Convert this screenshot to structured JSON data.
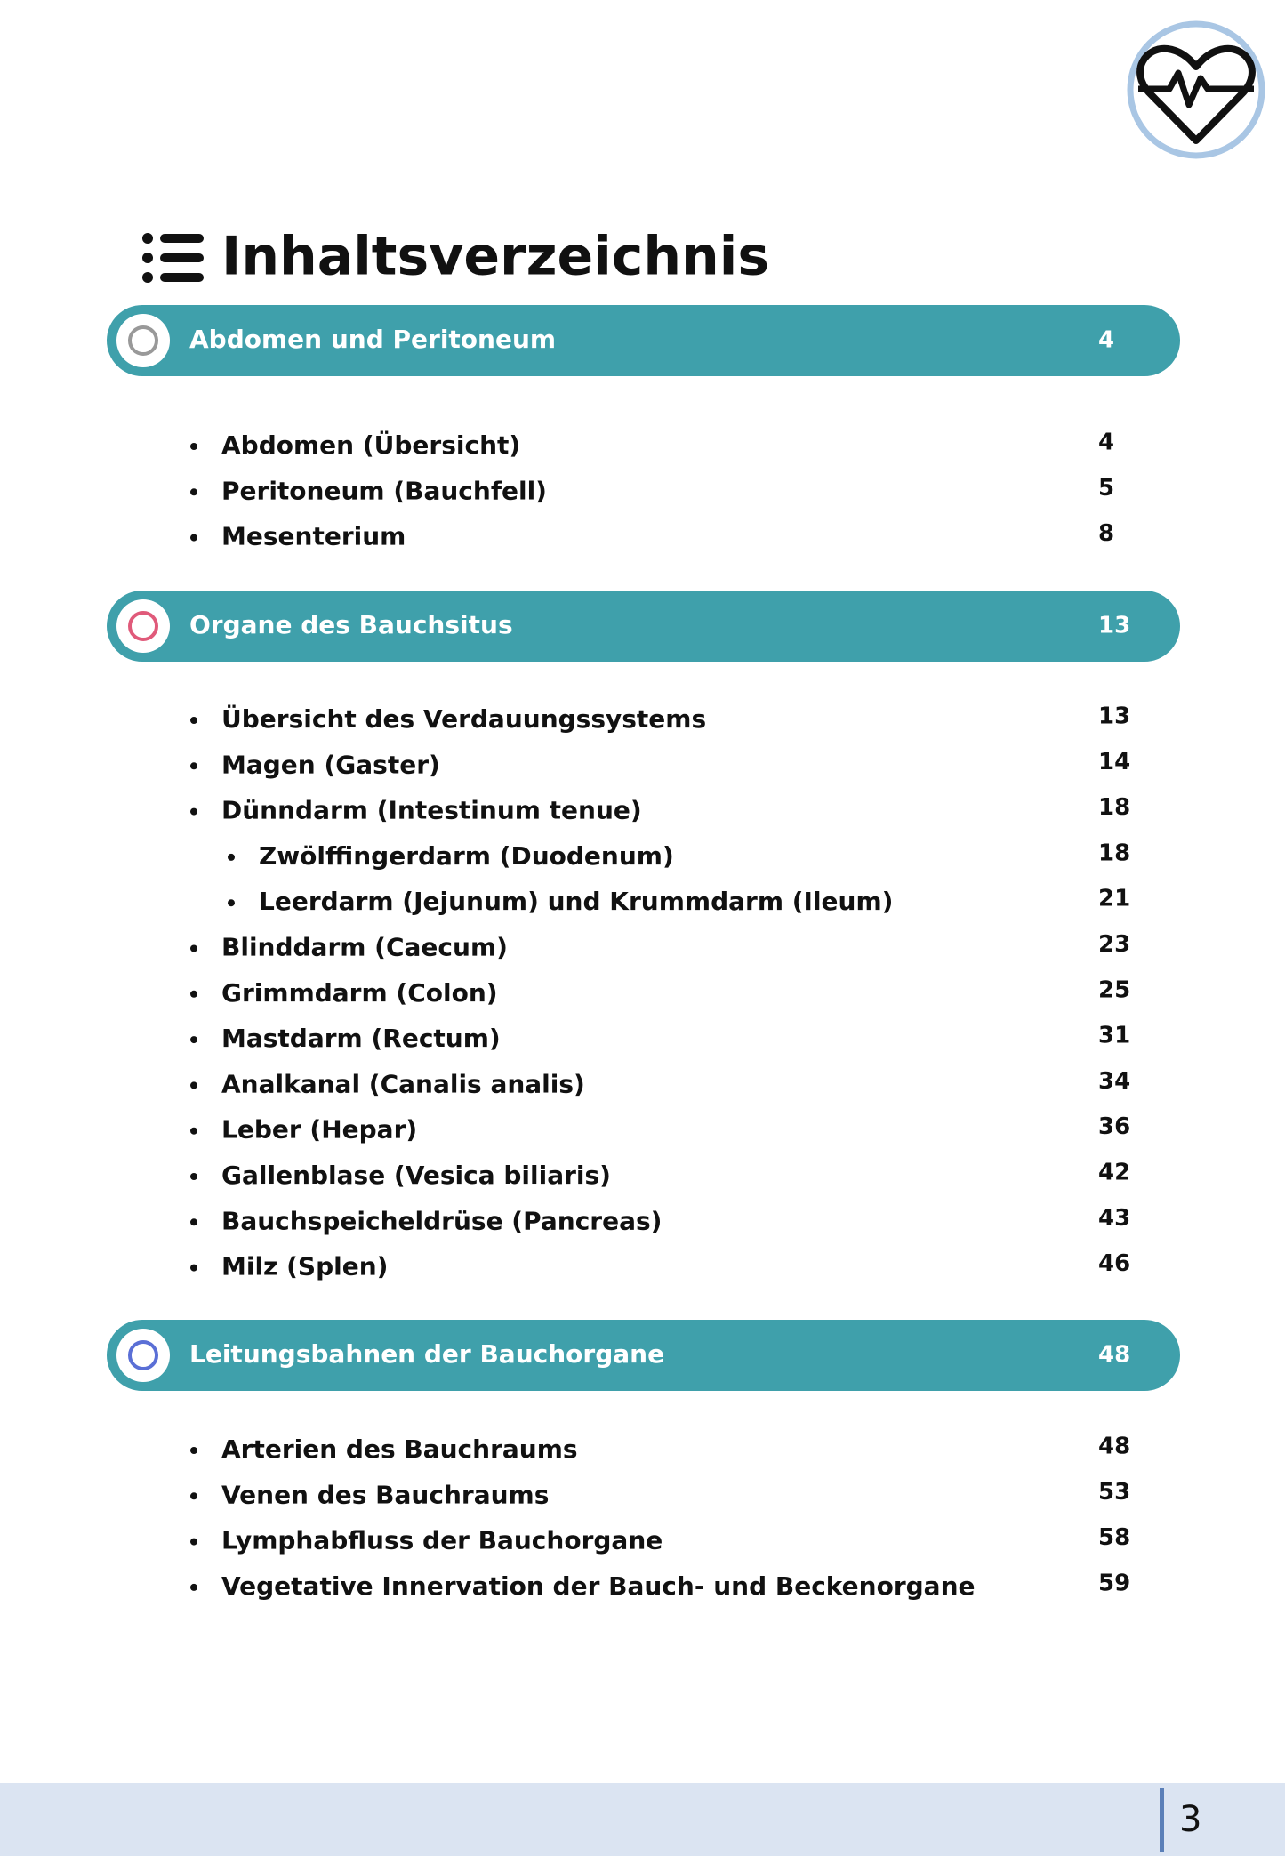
{
  "title": "Inhaltsverzeichnis",
  "sections": [
    {
      "title": "Abdomen und Peritoneum",
      "page": 4,
      "items": [
        {
          "label": "Abdomen (Übersicht)",
          "page": 4,
          "level": 1
        },
        {
          "label": "Peritoneum (Bauchfell)",
          "page": 5,
          "level": 1
        },
        {
          "label": "Mesenterium",
          "page": 8,
          "level": 1
        }
      ]
    },
    {
      "title": "Organe des Bauchsitus",
      "page": 13,
      "items": [
        {
          "label": "Übersicht des Verdauungssystems",
          "page": 13,
          "level": 1
        },
        {
          "label": "Magen (Gaster)",
          "page": 14,
          "level": 1
        },
        {
          "label": "Dünndarm (Intestinum tenue)",
          "page": 18,
          "level": 1
        },
        {
          "label": "Zwölffingerdarm (Duodenum)",
          "page": 18,
          "level": 2
        },
        {
          "label": "Leerdarm (Jejunum) und Krummdarm (Ileum)",
          "page": 21,
          "level": 2
        },
        {
          "label": "Blinddarm (Caecum)",
          "page": 23,
          "level": 1
        },
        {
          "label": "Grimmdarm (Colon)",
          "page": 25,
          "level": 1
        },
        {
          "label": "Mastdarm (Rectum)",
          "page": 31,
          "level": 1
        },
        {
          "label": "Analkanal (Canalis analis)",
          "page": 34,
          "level": 1
        },
        {
          "label": "Leber (Hepar)",
          "page": 36,
          "level": 1
        },
        {
          "label": "Gallenblase (Vesica biliaris)",
          "page": 42,
          "level": 1
        },
        {
          "label": "Bauchspeicheldrüse (Pancreas)",
          "page": 43,
          "level": 1
        },
        {
          "label": "Milz (Splen)",
          "page": 46,
          "level": 1
        }
      ]
    },
    {
      "title": "Leitungsbahnen der Bauchorgane",
      "page": 48,
      "items": [
        {
          "label": "Arterien des Bauchraums",
          "page": 48,
          "level": 1
        },
        {
          "label": "Venen des Bauchraums",
          "page": 53,
          "level": 1
        },
        {
          "label": "Lymphabfluss der Bauchorgane",
          "page": 58,
          "level": 1
        },
        {
          "label": "Vegetative Innervation der Bauch- und Beckenorgane",
          "page": 59,
          "level": 1
        }
      ]
    }
  ],
  "footer": {
    "page_number": 3
  }
}
